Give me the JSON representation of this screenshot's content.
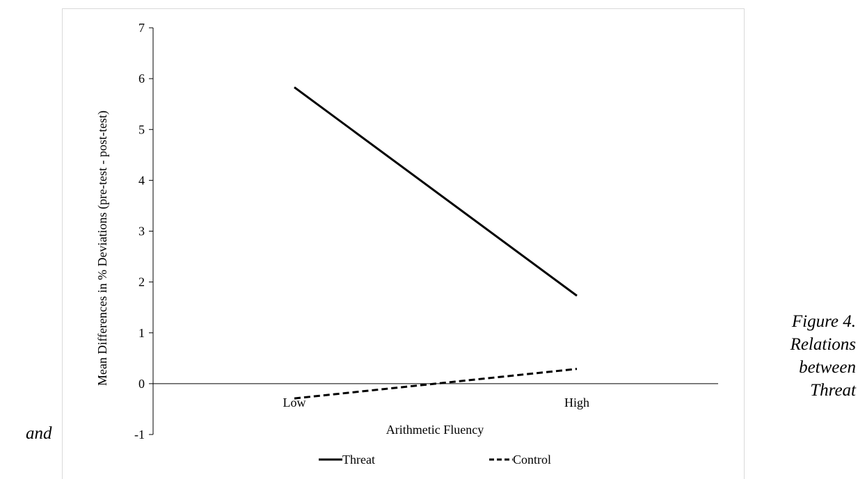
{
  "chart_data": {
    "type": "line",
    "categories": [
      "Low",
      "High"
    ],
    "series": [
      {
        "name": "Threat",
        "values": [
          5.83,
          1.73
        ],
        "style": "solid",
        "color": "#000000"
      },
      {
        "name": "Control",
        "values": [
          -0.29,
          0.29
        ],
        "style": "dashed",
        "color": "#000000"
      }
    ],
    "title": "",
    "xlabel": "Arithmetic Fluency",
    "ylabel": "Mean Differences in % Deviations (pre-test - post-test)",
    "ylim": [
      -1,
      7
    ],
    "yticks": [
      -1,
      0,
      1,
      2,
      3,
      4,
      5,
      6,
      7
    ],
    "legend_position": "bottom",
    "grid": false
  },
  "caption": {
    "right_lines": [
      "Figure 4.",
      "Relations",
      "between",
      "Threat"
    ],
    "left_fragment": "and"
  }
}
